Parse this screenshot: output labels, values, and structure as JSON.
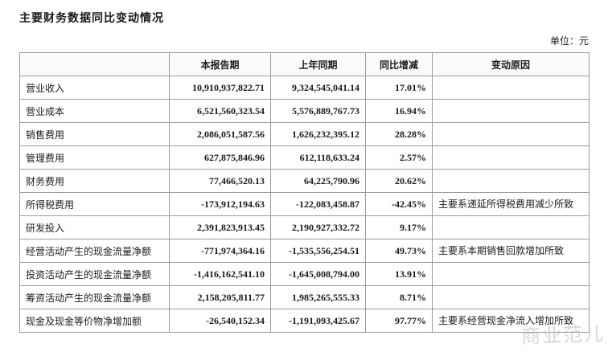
{
  "page": {
    "title": "主要财务数据同比变动情况",
    "unit_label": "单位：元"
  },
  "table": {
    "headers": [
      "",
      "本报告期",
      "上年同期",
      "同比增减",
      "变动原因"
    ],
    "rows": [
      {
        "label": "营业收入",
        "current": "10,910,937,822.71",
        "prior": "9,324,545,041.14",
        "change": "17.01%",
        "reason": ""
      },
      {
        "label": "营业成本",
        "current": "6,521,560,323.54",
        "prior": "5,576,889,767.73",
        "change": "16.94%",
        "reason": ""
      },
      {
        "label": "销售费用",
        "current": "2,086,051,587.56",
        "prior": "1,626,232,395.12",
        "change": "28.28%",
        "reason": ""
      },
      {
        "label": "管理费用",
        "current": "627,875,846.96",
        "prior": "612,118,633.24",
        "change": "2.57%",
        "reason": ""
      },
      {
        "label": "财务费用",
        "current": "77,466,520.13",
        "prior": "64,225,790.96",
        "change": "20.62%",
        "reason": ""
      },
      {
        "label": "所得税费用",
        "current": "-173,912,194.63",
        "prior": "-122,083,458.87",
        "change": "-42.45%",
        "reason": "主要系递延所得税费用减少所致"
      },
      {
        "label": "研发投入",
        "current": "2,391,823,913.45",
        "prior": "2,190,927,332.72",
        "change": "9.17%",
        "reason": ""
      },
      {
        "label": "经营活动产生的现金流量净额",
        "current": "-771,974,364.16",
        "prior": "-1,535,556,254.51",
        "change": "49.73%",
        "reason": "主要系本期销售回款增加所致"
      },
      {
        "label": "投资活动产生的现金流量净额",
        "current": "-1,416,162,541.10",
        "prior": "-1,645,008,794.00",
        "change": "13.91%",
        "reason": ""
      },
      {
        "label": "筹资活动产生的现金流量净额",
        "current": "2,158,205,811.77",
        "prior": "1,985,265,555.33",
        "change": "8.71%",
        "reason": ""
      },
      {
        "label": "现金及现金等价物净增加额",
        "current": "-26,540,152.34",
        "prior": "-1,191,093,425.67",
        "change": "97.77%",
        "reason": "主要系经营现金净流入增加所致"
      }
    ]
  },
  "watermark": {
    "text": "商业范儿"
  }
}
